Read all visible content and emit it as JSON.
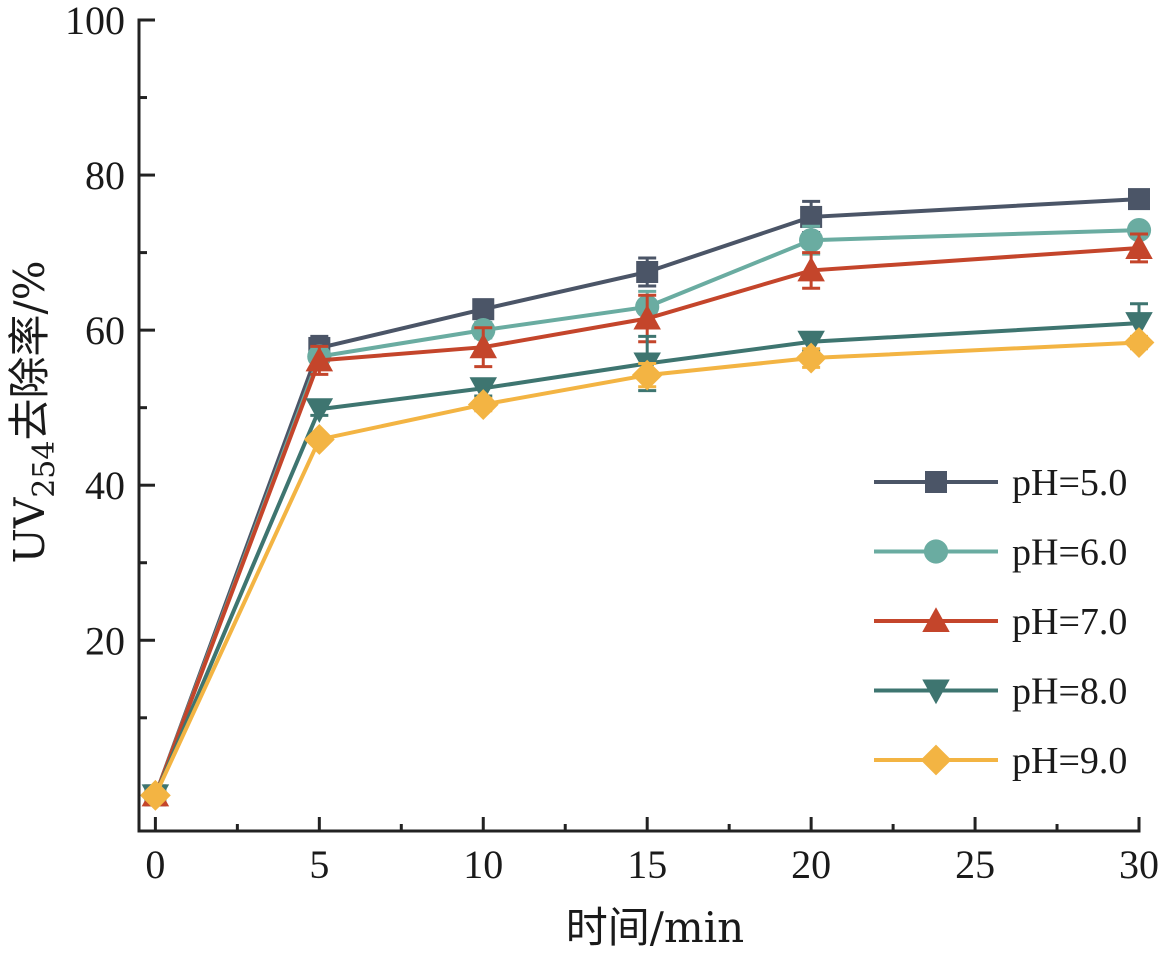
{
  "chart_data": {
    "type": "line",
    "title": "",
    "xlabel": "时间/min",
    "ylabel_main": "UV",
    "ylabel_sub": "254",
    "ylabel_rest": "去除率/%",
    "xlim": [
      -0.5,
      30
    ],
    "ylim": [
      -4.6,
      100
    ],
    "x_ticks": [
      0,
      5,
      10,
      15,
      20,
      25,
      30
    ],
    "x_tick_labels": [
      "0",
      "5",
      "10",
      "15",
      "20",
      "25",
      "30"
    ],
    "x_minor_ticks": [
      2.5,
      7.5,
      12.5,
      17.5,
      22.5,
      27.5
    ],
    "y_ticks": [
      20,
      40,
      60,
      80,
      100
    ],
    "y_tick_labels": [
      "20",
      "40",
      "60",
      "80",
      "100"
    ],
    "y_minor_ticks": [
      10,
      30,
      50,
      70,
      90
    ],
    "grid": false,
    "legend_position": "right-middle",
    "x": [
      0,
      5,
      10,
      15,
      20,
      30
    ],
    "series": [
      {
        "name": "pH=5.0",
        "color": "#4b5567",
        "marker": "square",
        "values": [
          0,
          57.7,
          62.7,
          67.5,
          74.6,
          76.9
        ],
        "errors": [
          0,
          1.5,
          1.2,
          1.8,
          2.0,
          0.8
        ]
      },
      {
        "name": "pH=6.0",
        "color": "#6aaca1",
        "marker": "circle",
        "values": [
          0,
          56.6,
          60.0,
          63.0,
          71.6,
          72.9
        ],
        "errors": [
          0,
          1.2,
          1.0,
          2.0,
          1.8,
          0.8
        ]
      },
      {
        "name": "pH=7.0",
        "color": "#c4452b",
        "marker": "triangle-up",
        "values": [
          0,
          56.1,
          57.8,
          61.5,
          67.7,
          70.6
        ],
        "errors": [
          0,
          1.8,
          2.5,
          3.0,
          2.3,
          1.8
        ]
      },
      {
        "name": "pH=8.0",
        "color": "#3e7570",
        "marker": "triangle-down",
        "values": [
          0,
          49.8,
          52.5,
          55.7,
          58.5,
          60.9
        ],
        "errors": [
          0,
          0.8,
          1.0,
          3.5,
          1.2,
          2.5
        ]
      },
      {
        "name": "pH=9.0",
        "color": "#f3b443",
        "marker": "diamond",
        "values": [
          0,
          45.9,
          50.4,
          54.2,
          56.4,
          58.4
        ],
        "errors": [
          0,
          0.6,
          0.8,
          1.5,
          1.2,
          0.8
        ]
      }
    ]
  }
}
